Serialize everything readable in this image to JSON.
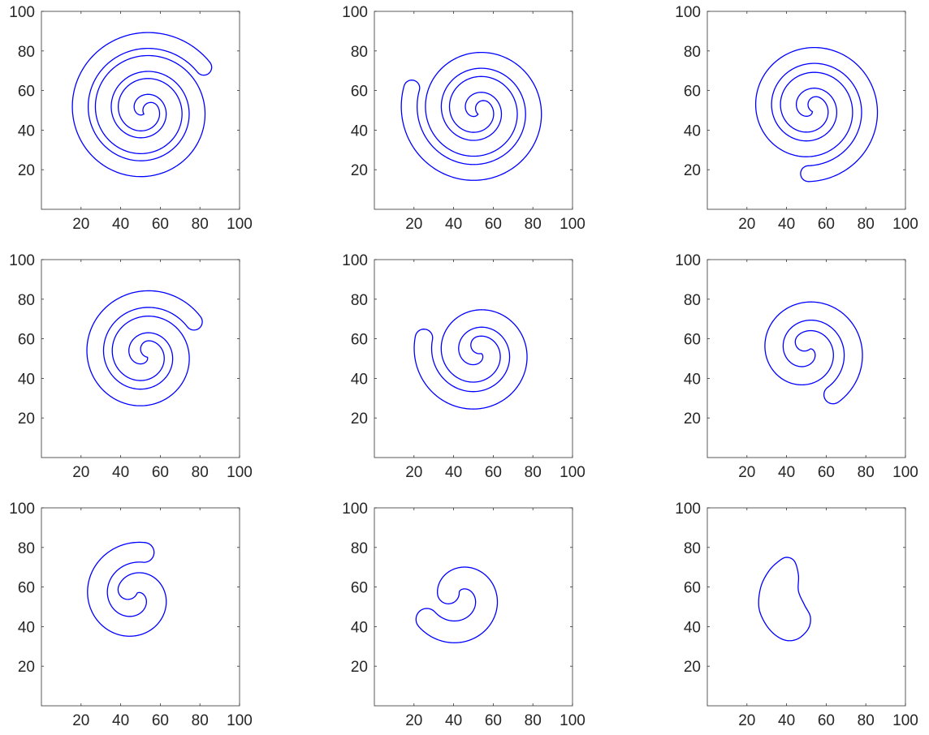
{
  "figure": {
    "rows": 3,
    "cols": 3,
    "curve_color": "#0000ff",
    "axis_color": "#333333",
    "text_color": "#262626",
    "background": "#ffffff"
  },
  "chart_data": [
    {
      "type": "line",
      "title": "",
      "xlabel": "",
      "ylabel": "",
      "xlim": [
        0,
        100
      ],
      "ylim": [
        0,
        100
      ],
      "xticks": [
        "20",
        "40",
        "60",
        "80",
        "100"
      ],
      "yticks": [
        "20",
        "40",
        "60",
        "80",
        "100"
      ],
      "grid": false,
      "legend": "none",
      "shape": "spiral",
      "center": [
        52,
        50
      ],
      "turns": 2.9,
      "r_inner": 3.2,
      "r_outer": 37,
      "tube_width": 4.0,
      "rot_offset": 0
    },
    {
      "type": "line",
      "title": "",
      "xlabel": "",
      "ylabel": "",
      "xlim": [
        0,
        100
      ],
      "ylim": [
        0,
        100
      ],
      "xticks": [
        "20",
        "40",
        "60",
        "80",
        "100"
      ],
      "yticks": [
        "20",
        "40",
        "60",
        "80",
        "100"
      ],
      "grid": false,
      "legend": "none",
      "shape": "spiral",
      "center": [
        52,
        50
      ],
      "turns": 2.6,
      "r_inner": 3.2,
      "r_outer": 35,
      "tube_width": 4.0,
      "rot_offset": 0.3
    },
    {
      "type": "line",
      "title": "",
      "xlabel": "",
      "ylabel": "",
      "xlim": [
        0,
        100
      ],
      "ylim": [
        0,
        100
      ],
      "xticks": [
        "20",
        "40",
        "60",
        "80",
        "100"
      ],
      "yticks": [
        "20",
        "40",
        "60",
        "80",
        "100"
      ],
      "grid": false,
      "legend": "none",
      "shape": "spiral",
      "center": [
        52,
        51
      ],
      "turns": 2.35,
      "r_inner": 3.4,
      "r_outer": 33,
      "tube_width": 4.0,
      "rot_offset": 0.6
    },
    {
      "type": "line",
      "title": "",
      "xlabel": "",
      "ylabel": "",
      "xlim": [
        0,
        100
      ],
      "ylim": [
        0,
        100
      ],
      "xticks": [
        "20",
        "40",
        "60",
        "80",
        "100"
      ],
      "yticks": [
        "20",
        "40",
        "60",
        "80",
        "100"
      ],
      "grid": false,
      "legend": "none",
      "shape": "spiral",
      "center": [
        52,
        52
      ],
      "turns": 2.05,
      "r_inner": 3.6,
      "r_outer": 30,
      "tube_width": 4.2,
      "rot_offset": 0.9
    },
    {
      "type": "line",
      "title": "",
      "xlabel": "",
      "ylabel": "",
      "xlim": [
        0,
        100
      ],
      "ylim": [
        0,
        100
      ],
      "xticks": [
        "20",
        "40",
        "60",
        "80",
        "100"
      ],
      "yticks": [
        "20",
        "40",
        "60",
        "80",
        "100"
      ],
      "grid": false,
      "legend": "none",
      "shape": "spiral",
      "center": [
        52,
        53
      ],
      "turns": 1.75,
      "r_inner": 4.0,
      "r_outer": 28,
      "tube_width": 4.4,
      "rot_offset": 1.3
    },
    {
      "type": "line",
      "title": "",
      "xlabel": "",
      "ylabel": "",
      "xlim": [
        0,
        100
      ],
      "ylim": [
        0,
        100
      ],
      "xticks": [
        "20",
        "40",
        "60",
        "80",
        "100"
      ],
      "yticks": [
        "20",
        "40",
        "60",
        "80",
        "100"
      ],
      "grid": false,
      "legend": "none",
      "shape": "spiral",
      "center": [
        50,
        54
      ],
      "turns": 1.45,
      "r_inner": 4.5,
      "r_outer": 26,
      "tube_width": 4.6,
      "rot_offset": 1.8
    },
    {
      "type": "line",
      "title": "",
      "xlabel": "",
      "ylabel": "",
      "xlim": [
        0,
        100
      ],
      "ylim": [
        0,
        100
      ],
      "xticks": [
        "20",
        "40",
        "60",
        "80",
        "100"
      ],
      "yticks": [
        "20",
        "40",
        "60",
        "80",
        "100"
      ],
      "grid": false,
      "legend": "none",
      "shape": "spiral",
      "center": [
        47,
        55
      ],
      "turns": 1.15,
      "r_inner": 5.0,
      "r_outer": 23,
      "tube_width": 5.0,
      "rot_offset": 2.3
    },
    {
      "type": "line",
      "title": "",
      "xlabel": "",
      "ylabel": "",
      "xlim": [
        0,
        100
      ],
      "ylim": [
        0,
        100
      ],
      "xticks": [
        "20",
        "40",
        "60",
        "80",
        "100"
      ],
      "yticks": [
        "20",
        "40",
        "60",
        "80",
        "100"
      ],
      "grid": false,
      "legend": "none",
      "shape": "spiral",
      "center": [
        43,
        55
      ],
      "turns": 0.85,
      "r_inner": 6.0,
      "r_outer": 20,
      "tube_width": 5.5,
      "rot_offset": 2.8
    },
    {
      "type": "line",
      "title": "",
      "xlabel": "",
      "ylabel": "",
      "xlim": [
        0,
        100
      ],
      "ylim": [
        0,
        100
      ],
      "xticks": [
        "20",
        "40",
        "60",
        "80",
        "100"
      ],
      "yticks": [
        "20",
        "40",
        "60",
        "80",
        "100"
      ],
      "grid": false,
      "legend": "none",
      "shape": "blob",
      "points": [
        [
          40,
          75
        ],
        [
          44,
          73
        ],
        [
          46,
          66
        ],
        [
          46,
          58
        ],
        [
          49,
          51
        ],
        [
          52,
          45
        ],
        [
          51,
          39
        ],
        [
          46,
          34
        ],
        [
          40,
          33
        ],
        [
          34,
          36
        ],
        [
          29,
          42
        ],
        [
          26,
          50
        ],
        [
          27,
          60
        ],
        [
          31,
          68
        ],
        [
          36,
          73
        ],
        [
          40,
          75
        ]
      ]
    }
  ]
}
